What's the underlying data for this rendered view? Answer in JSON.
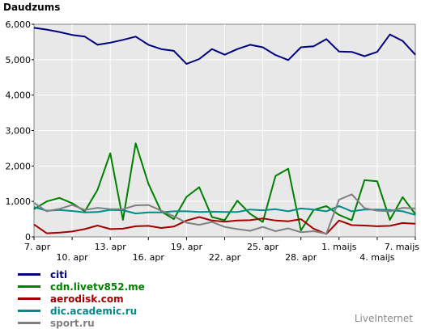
{
  "chart_data": {
    "type": "line",
    "title": "Daudzums",
    "x": [
      "7. apr",
      "8. apr",
      "9. apr",
      "10. apr",
      "11. apr",
      "12. apr",
      "13. apr",
      "14. apr",
      "15. apr",
      "16. apr",
      "17. apr",
      "18. apr",
      "19. apr",
      "20. apr",
      "21. apr",
      "22. apr",
      "23. apr",
      "24. apr",
      "25. apr",
      "26. apr",
      "27. apr",
      "28. apr",
      "29. apr",
      "30. apr",
      "1. maijs",
      "2. maijs",
      "3. maijs",
      "4. maijs",
      "5. maijs",
      "6. maijs",
      "7. maijs"
    ],
    "x_tick_labels": [
      "7. apr",
      "10. apr",
      "13. apr",
      "16. apr",
      "19. apr",
      "22. apr",
      "25. apr",
      "28. apr",
      "1. maijs",
      "4. maijs",
      "7. maijs"
    ],
    "ylim": [
      0,
      6000
    ],
    "y_ticks": [
      0,
      1000,
      2000,
      3000,
      4000,
      5000,
      6000
    ],
    "y_tick_labels": [
      "0",
      "1,000",
      "2,000",
      "3,000",
      "4,000",
      "5,000",
      "6,000"
    ],
    "grid": true,
    "series": [
      {
        "name": "citi",
        "color": "#00007f",
        "values": [
          5900,
          5850,
          5780,
          5700,
          5650,
          5420,
          5480,
          5560,
          5650,
          5420,
          5300,
          5250,
          4880,
          5020,
          5300,
          5140,
          5300,
          5420,
          5350,
          5130,
          4990,
          5350,
          5380,
          5580,
          5230,
          5220,
          5100,
          5220,
          5710,
          5530,
          5140
        ]
      },
      {
        "name": "cdn.livetv852.me",
        "color": "#008000",
        "values": [
          780,
          1000,
          1100,
          950,
          720,
          1330,
          2360,
          480,
          2640,
          1500,
          720,
          500,
          1130,
          1400,
          560,
          470,
          1020,
          650,
          420,
          1720,
          1920,
          180,
          760,
          870,
          620,
          470,
          1600,
          1570,
          480,
          1120,
          640
        ]
      },
      {
        "name": "aerodisk.com",
        "color": "#a00000",
        "values": [
          350,
          100,
          120,
          150,
          220,
          320,
          220,
          230,
          300,
          310,
          250,
          290,
          460,
          560,
          460,
          430,
          460,
          470,
          520,
          460,
          440,
          500,
          230,
          80,
          460,
          330,
          320,
          300,
          310,
          390,
          370
        ]
      },
      {
        "name": "dic.academic.ru",
        "color": "#008b8b",
        "values": [
          840,
          740,
          760,
          730,
          690,
          700,
          760,
          750,
          660,
          690,
          690,
          720,
          720,
          700,
          710,
          700,
          700,
          770,
          750,
          780,
          720,
          800,
          770,
          720,
          870,
          720,
          770,
          770,
          760,
          720,
          620
        ]
      },
      {
        "name": "sport.ru",
        "color": "#808080",
        "values": [
          960,
          720,
          790,
          900,
          760,
          820,
          780,
          780,
          890,
          900,
          740,
          580,
          400,
          340,
          420,
          280,
          220,
          170,
          280,
          160,
          240,
          130,
          160,
          90,
          1050,
          1200,
          810,
          740,
          720,
          820,
          800
        ]
      }
    ]
  },
  "footer": {
    "brand": "LiveInternet"
  }
}
